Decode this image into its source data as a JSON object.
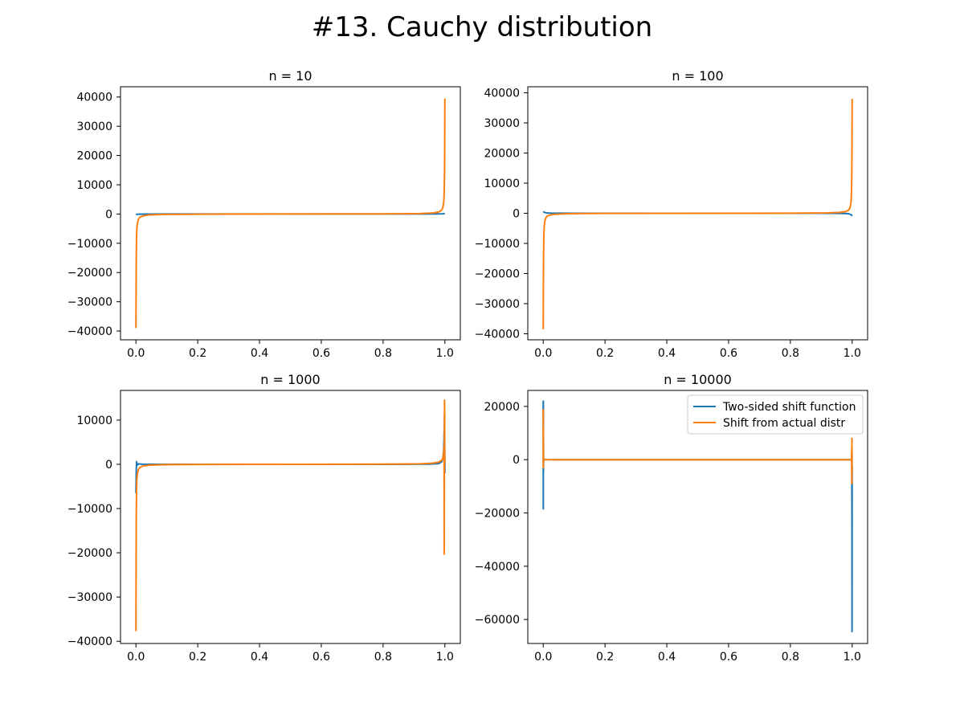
{
  "figure_title": "#13. Cauchy distribution",
  "colors": {
    "series_blue": "#1f77b4",
    "series_orange": "#ff7f0e",
    "frame": "#000000",
    "legend_border": "#cccccc"
  },
  "legend": {
    "location": "upper right",
    "subplot": 3,
    "entries": [
      "Two-sided shift function",
      "Shift from actual distr"
    ]
  },
  "chart_data": [
    {
      "type": "line",
      "title": "n = 10",
      "xlim": [
        -0.05,
        1.05
      ],
      "ylim": [
        -43000,
        43500
      ],
      "xticks": [
        0.0,
        0.2,
        0.4,
        0.6,
        0.8,
        1.0
      ],
      "xtick_labels": [
        "0.0",
        "0.2",
        "0.4",
        "0.6",
        "0.8",
        "1.0"
      ],
      "yticks": [
        -40000,
        -30000,
        -20000,
        -10000,
        0,
        10000,
        20000,
        30000,
        40000
      ],
      "ytick_labels": [
        "−40000",
        "−30000",
        "−20000",
        "−10000",
        "0",
        "10000",
        "20000",
        "30000",
        "40000"
      ],
      "series": [
        {
          "name": "Two-sided shift function",
          "color": "#1f77b4",
          "x": [
            0.0,
            0.001,
            0.002,
            0.005,
            0.01,
            0.02,
            0.05,
            0.1,
            0.3,
            0.5,
            0.7,
            0.9,
            0.95,
            0.98,
            0.99,
            0.995,
            0.998,
            0.999,
            1.0
          ],
          "y": [
            -200,
            -150,
            -120,
            -90,
            -60,
            -40,
            -20,
            -5,
            0,
            0,
            0,
            10,
            25,
            45,
            65,
            90,
            130,
            170,
            220
          ]
        },
        {
          "name": "Shift from actual distr",
          "color": "#ff7f0e",
          "x": [
            0.0,
            0.0005,
            0.001,
            0.002,
            0.003,
            0.005,
            0.008,
            0.012,
            0.02,
            0.04,
            0.08,
            0.2,
            0.5,
            0.8,
            0.92,
            0.96,
            0.98,
            0.988,
            0.992,
            0.995,
            0.997,
            0.998,
            0.999,
            0.9995,
            1.0
          ],
          "y": [
            -39000,
            -25000,
            -15000,
            -8000,
            -5000,
            -3000,
            -1800,
            -1200,
            -700,
            -350,
            -150,
            -50,
            0,
            50,
            150,
            350,
            700,
            1200,
            1800,
            3000,
            5000,
            8000,
            15000,
            25000,
            39500
          ]
        }
      ]
    },
    {
      "type": "line",
      "title": "n = 100",
      "xlim": [
        -0.05,
        1.05
      ],
      "ylim": [
        -42000,
        42000
      ],
      "xticks": [
        0.0,
        0.2,
        0.4,
        0.6,
        0.8,
        1.0
      ],
      "xtick_labels": [
        "0.0",
        "0.2",
        "0.4",
        "0.6",
        "0.8",
        "1.0"
      ],
      "yticks": [
        -40000,
        -30000,
        -20000,
        -10000,
        0,
        10000,
        20000,
        30000,
        40000
      ],
      "ytick_labels": [
        "−40000",
        "−30000",
        "−20000",
        "−10000",
        "0",
        "10000",
        "20000",
        "30000",
        "40000"
      ],
      "series": [
        {
          "name": "Two-sided shift function",
          "color": "#1f77b4",
          "x": [
            0.0,
            0.002,
            0.005,
            0.01,
            0.02,
            0.05,
            0.1,
            0.3,
            0.5,
            0.7,
            0.9,
            0.95,
            0.98,
            0.99,
            0.995,
            0.998,
            1.0
          ],
          "y": [
            600,
            400,
            250,
            150,
            80,
            30,
            10,
            0,
            0,
            0,
            -10,
            -30,
            -80,
            -200,
            -400,
            -600,
            -900
          ]
        },
        {
          "name": "Shift from actual distr",
          "color": "#ff7f0e",
          "x": [
            0.0,
            0.0005,
            0.001,
            0.002,
            0.003,
            0.005,
            0.008,
            0.012,
            0.02,
            0.04,
            0.08,
            0.2,
            0.5,
            0.8,
            0.92,
            0.96,
            0.98,
            0.988,
            0.992,
            0.995,
            0.997,
            0.998,
            0.999,
            0.9995,
            1.0
          ],
          "y": [
            -38500,
            -24000,
            -14000,
            -7500,
            -4500,
            -2700,
            -1600,
            -1000,
            -600,
            -300,
            -130,
            -40,
            0,
            40,
            130,
            300,
            600,
            1000,
            1600,
            2700,
            4500,
            7500,
            14000,
            24000,
            38000
          ]
        }
      ]
    },
    {
      "type": "line",
      "title": "n = 1000",
      "xlim": [
        -0.05,
        1.05
      ],
      "ylim": [
        -40500,
        16700
      ],
      "xticks": [
        0.0,
        0.2,
        0.4,
        0.6,
        0.8,
        1.0
      ],
      "xtick_labels": [
        "0.0",
        "0.2",
        "0.4",
        "0.6",
        "0.8",
        "1.0"
      ],
      "yticks": [
        -40000,
        -30000,
        -20000,
        -10000,
        0,
        10000
      ],
      "ytick_labels": [
        "−40000",
        "−30000",
        "−20000",
        "−10000",
        "0",
        "10000"
      ],
      "series": [
        {
          "name": "Two-sided shift function",
          "color": "#1f77b4",
          "x": [
            0.0,
            0.001,
            0.002,
            0.004,
            0.008,
            0.02,
            0.05,
            0.2,
            0.5,
            0.8,
            0.95,
            0.98,
            0.99,
            0.994,
            0.996,
            0.997,
            0.998,
            0.999,
            1.0
          ],
          "y": [
            -6500,
            -1500,
            600,
            -200,
            100,
            20,
            0,
            0,
            0,
            0,
            30,
            150,
            600,
            1500,
            3000,
            5000,
            8000,
            11500,
            -2000
          ]
        },
        {
          "name": "Shift from actual distr",
          "color": "#ff7f0e",
          "x": [
            0.0,
            0.0005,
            0.001,
            0.002,
            0.003,
            0.005,
            0.008,
            0.012,
            0.02,
            0.04,
            0.08,
            0.2,
            0.5,
            0.8,
            0.92,
            0.96,
            0.98,
            0.99,
            0.994,
            0.996,
            0.9975,
            0.998,
            0.9985,
            0.999,
            0.9995,
            1.0
          ],
          "y": [
            -37700,
            -22000,
            -12000,
            -6000,
            -3500,
            -2000,
            -1200,
            -800,
            -450,
            -220,
            -100,
            -30,
            0,
            30,
            100,
            250,
            500,
            900,
            1500,
            2500,
            4000,
            -20300,
            8000,
            14500,
            3000,
            200
          ]
        }
      ]
    },
    {
      "type": "line",
      "title": "n = 10000",
      "xlim": [
        -0.05,
        1.05
      ],
      "ylim": [
        -69000,
        26000
      ],
      "xticks": [
        0.0,
        0.2,
        0.4,
        0.6,
        0.8,
        1.0
      ],
      "xtick_labels": [
        "0.0",
        "0.2",
        "0.4",
        "0.6",
        "0.8",
        "1.0"
      ],
      "yticks": [
        -60000,
        -40000,
        -20000,
        0,
        20000
      ],
      "ytick_labels": [
        "−60000",
        "−40000",
        "−20000",
        "0",
        "20000"
      ],
      "series": [
        {
          "name": "Two-sided shift function",
          "color": "#1f77b4",
          "x": [
            0.0,
            0.0002,
            0.0004,
            0.0006,
            0.0008,
            0.001,
            0.0015,
            0.002,
            0.004,
            0.01,
            0.05,
            0.5,
            0.95,
            0.99,
            0.996,
            0.998,
            0.9985,
            0.999,
            0.9993,
            0.9996,
            0.9998,
            1.0
          ],
          "y": [
            21800,
            -18500,
            22000,
            -5000,
            8000,
            -1500,
            500,
            200,
            50,
            10,
            0,
            0,
            0,
            -10,
            -50,
            -300,
            2000,
            -8000,
            -20000,
            -64500,
            -30000,
            -2000
          ]
        },
        {
          "name": "Shift from actual distr",
          "color": "#ff7f0e",
          "x": [
            0.0,
            0.0003,
            0.0006,
            0.001,
            0.0015,
            0.002,
            0.004,
            0.01,
            0.05,
            0.5,
            0.95,
            0.99,
            0.996,
            0.998,
            0.9985,
            0.999,
            0.9993,
            0.9996,
            0.9998,
            1.0
          ],
          "y": [
            19000,
            -3000,
            12000,
            -500,
            400,
            150,
            40,
            10,
            0,
            0,
            0,
            -10,
            -40,
            -200,
            4000,
            -9000,
            8000,
            -5000,
            2000,
            500
          ]
        }
      ]
    }
  ]
}
